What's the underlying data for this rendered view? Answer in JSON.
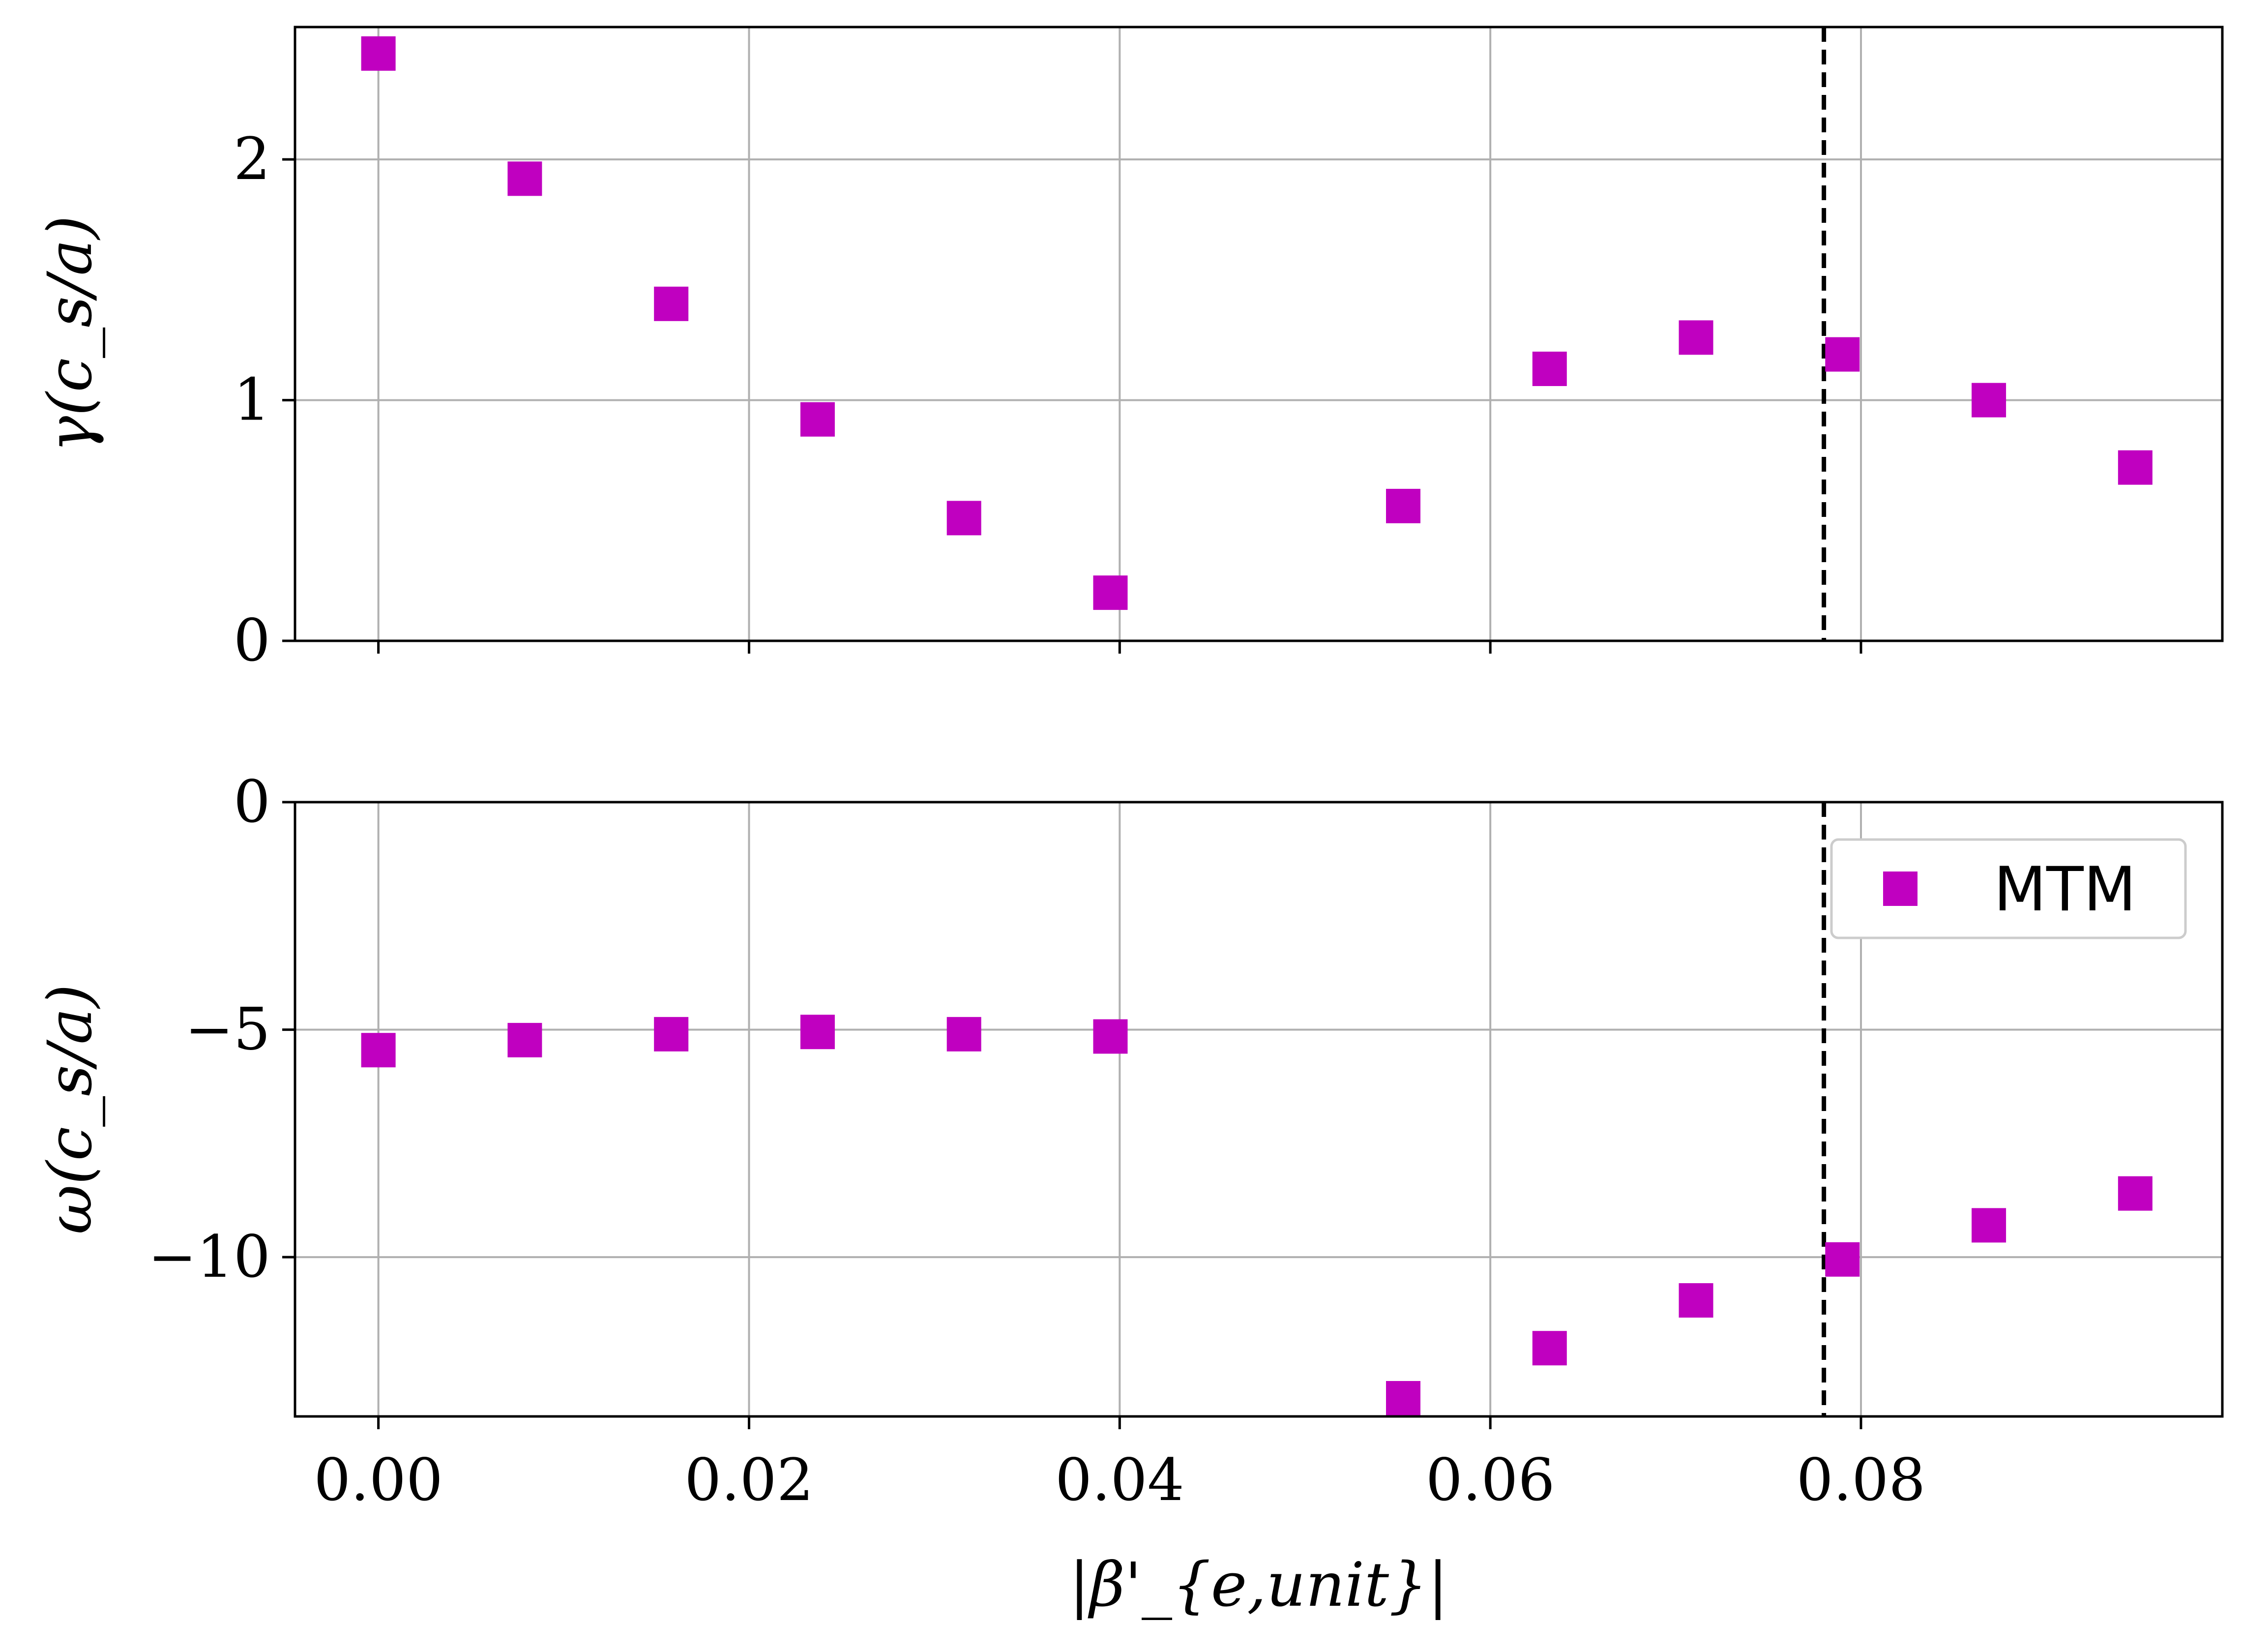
{
  "chart_data": [
    {
      "type": "scatter",
      "panel": "top",
      "ylabel": "γ(c_s/a)",
      "ylim": [
        0,
        2.55
      ],
      "yticks": [
        0,
        1,
        2
      ],
      "ytick_labels": [
        "0",
        "1",
        "2"
      ],
      "xlim": [
        -0.0045,
        0.0995
      ],
      "xticks": [
        0.0,
        0.02,
        0.04,
        0.06,
        0.08
      ],
      "grid": true,
      "vline_x": 0.078,
      "series": [
        {
          "name": "MTM",
          "color": "#c000c0",
          "marker": "square",
          "x": [
            0.0,
            0.0079,
            0.0158,
            0.0237,
            0.0316,
            0.0395,
            0.0553,
            0.0632,
            0.0711,
            0.079,
            0.0869,
            0.0948
          ],
          "y": [
            2.44,
            1.92,
            1.4,
            0.92,
            0.51,
            0.2,
            0.56,
            1.13,
            1.26,
            1.19,
            1.0,
            0.72
          ]
        }
      ]
    },
    {
      "type": "scatter",
      "panel": "bottom",
      "ylabel": "ω(c_s/a)",
      "xlabel": "|β'_{e,unit}|",
      "ylim": [
        -13.5,
        0
      ],
      "yticks": [
        0,
        -5,
        -10
      ],
      "ytick_labels": [
        "0",
        "−5",
        "−10"
      ],
      "xlim": [
        -0.0045,
        0.0995
      ],
      "xticks": [
        0.0,
        0.02,
        0.04,
        0.06,
        0.08
      ],
      "xtick_labels": [
        "0.00",
        "0.02",
        "0.04",
        "0.06",
        "0.08"
      ],
      "grid": true,
      "vline_x": 0.078,
      "legend": {
        "placement": "upper-right",
        "entries": [
          "MTM"
        ]
      },
      "series": [
        {
          "name": "MTM",
          "color": "#c000c0",
          "marker": "square",
          "x": [
            0.0,
            0.0079,
            0.0158,
            0.0237,
            0.0316,
            0.0395,
            0.0553,
            0.0632,
            0.0711,
            0.079,
            0.0869,
            0.0948
          ],
          "y": [
            -5.45,
            -5.23,
            -5.1,
            -5.05,
            -5.1,
            -5.15,
            -13.1,
            -12.0,
            -10.95,
            -10.05,
            -9.3,
            -8.6
          ]
        }
      ]
    }
  ]
}
